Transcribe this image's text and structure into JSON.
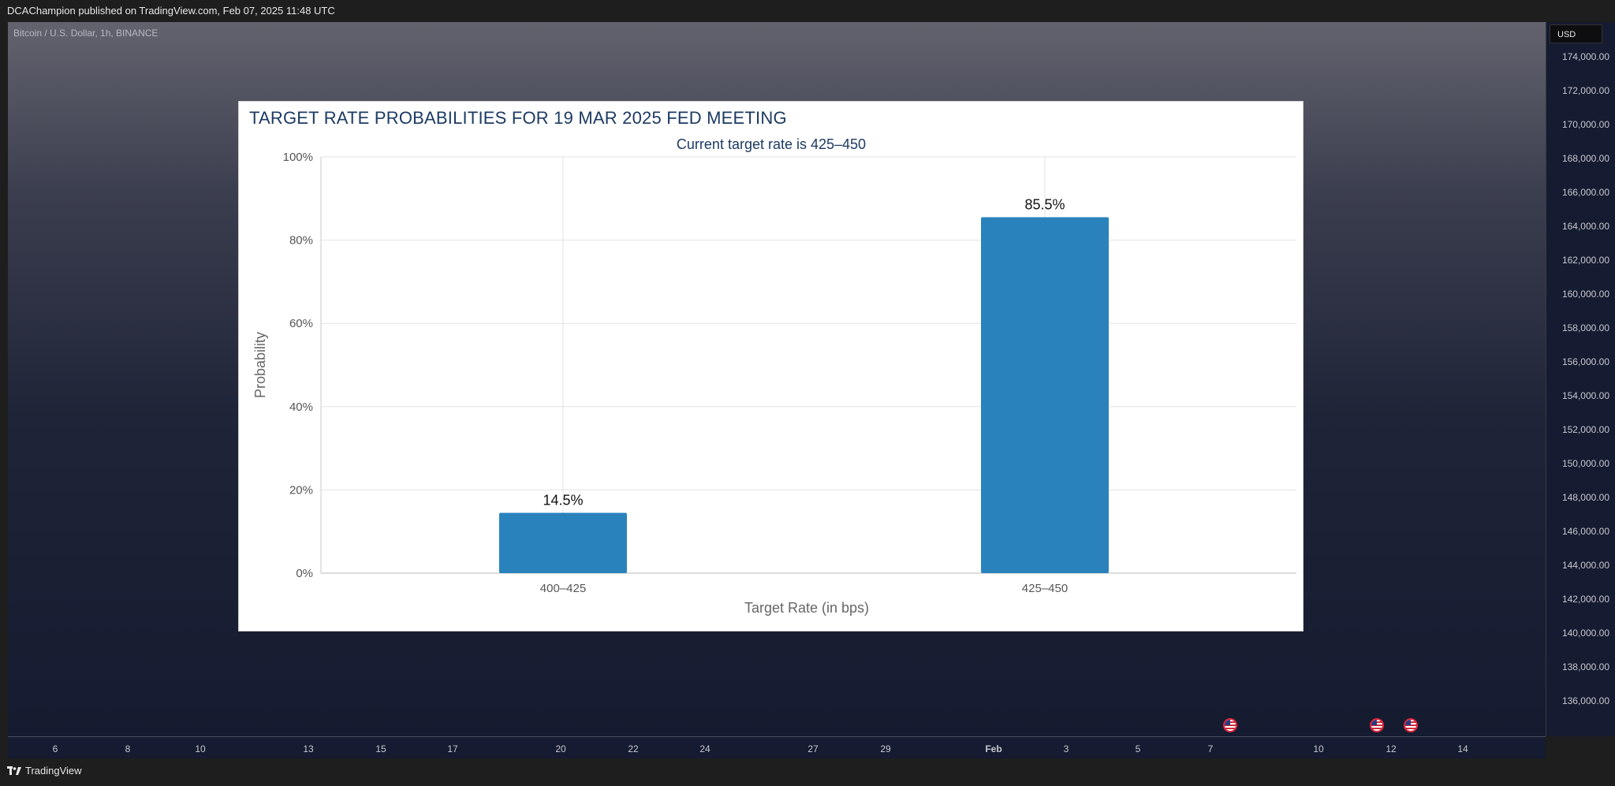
{
  "topbar": {
    "text": "DCAChampion published on TradingView.com, Feb 07, 2025 11:48 UTC"
  },
  "symbol": {
    "text": "Bitcoin / U.S. Dollar, 1h, BINANCE"
  },
  "price_axis": {
    "currency_button": "USD",
    "labels": [
      "174,000.00",
      "172,000.00",
      "170,000.00",
      "168,000.00",
      "166,000.00",
      "164,000.00",
      "162,000.00",
      "160,000.00",
      "158,000.00",
      "156,000.00",
      "154,000.00",
      "152,000.00",
      "150,000.00",
      "148,000.00",
      "146,000.00",
      "144,000.00",
      "142,000.00",
      "140,000.00",
      "138,000.00",
      "136,000.00"
    ]
  },
  "time_axis": {
    "labels": [
      {
        "text": "6"
      },
      {
        "text": "8"
      },
      {
        "text": "10"
      },
      {
        "text": "13"
      },
      {
        "text": "15"
      },
      {
        "text": "17"
      },
      {
        "text": "20"
      },
      {
        "text": "22"
      },
      {
        "text": "24"
      },
      {
        "text": "27"
      },
      {
        "text": "29"
      },
      {
        "text": "Feb",
        "month": true
      },
      {
        "text": "3"
      },
      {
        "text": "5"
      },
      {
        "text": "7"
      },
      {
        "text": "10"
      },
      {
        "text": "12"
      },
      {
        "text": "14"
      }
    ]
  },
  "footer": {
    "brand": "TradingView"
  },
  "event_flags": [
    "us-flag",
    "us-flag",
    "us-flag"
  ],
  "colors": {
    "bar": "#2a82bd",
    "title": "#1d3a62",
    "chart_bg_top": "#63636e",
    "chart_bg_bottom": "#151b30"
  },
  "chart_data": {
    "type": "bar",
    "title": "TARGET RATE PROBABILITIES FOR 19 MAR 2025 FED MEETING",
    "subtitle": "Current target rate is 425–450",
    "xlabel": "Target Rate (in bps)",
    "ylabel": "Probability",
    "categories": [
      "400–425",
      "425–450"
    ],
    "values": [
      14.5,
      85.5
    ],
    "data_labels": [
      "14.5%",
      "85.5%"
    ],
    "yticks": [
      "0%",
      "20%",
      "40%",
      "60%",
      "80%",
      "100%"
    ],
    "ylim": [
      0,
      100
    ],
    "grid": true
  }
}
